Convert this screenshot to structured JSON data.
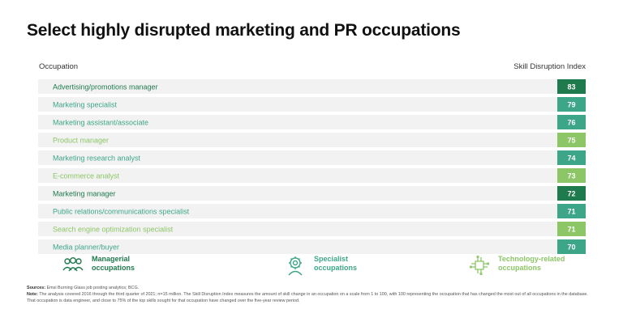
{
  "header": {
    "title": "Select highly disrupted marketing and PR occupations",
    "col_left": "Occupation",
    "col_right": "Skill Disruption Index"
  },
  "colors": {
    "Managerial": "#1f7a4d",
    "Specialist": "#3ea688",
    "Technology-related": "#8cc667",
    "row_bg": "#f2f2f2"
  },
  "chart_data": {
    "type": "bar",
    "categories": [
      "Advertising/promotions manager",
      "Marketing specialist",
      "Marketing assistant/associate",
      "Product manager",
      "Marketing research analyst",
      "E-commerce analyst",
      "Marketing manager",
      "Public relations/communications specialist",
      "Search engine optimization specialist",
      "Media planner/buyer"
    ],
    "values": [
      83,
      79,
      76,
      75,
      74,
      73,
      72,
      71,
      71,
      70
    ],
    "groups": [
      "Managerial",
      "Specialist",
      "Specialist",
      "Technology-related",
      "Specialist",
      "Technology-related",
      "Managerial",
      "Specialist",
      "Technology-related",
      "Specialist"
    ],
    "title": "Select highly disrupted marketing and PR occupations",
    "xlabel": "Occupation",
    "ylabel": "Skill Disruption Index"
  },
  "legend": {
    "managerial": {
      "line1": "Managerial",
      "line2": "occupations",
      "icon": "people-group-icon"
    },
    "specialist": {
      "line1": "Specialist",
      "line2": "occupations",
      "icon": "specialist-gear-person-icon"
    },
    "technology": {
      "line1": "Technology-related",
      "line2": "occupations",
      "icon": "circuit-chip-icon"
    }
  },
  "footer": {
    "sources_label": "Sources:",
    "sources_text": "Emsi Burning Glass job posting analytics; BCG.",
    "note_label": "Note:",
    "note_text": "The analysis covered 2016 through the third quarter of 2021; n=15 million. The Skill Disruption Index measures the amount of skill change in an occupation on a scale from 1 to 100, with 100 representing the occupation that has changed the most out of all occupations in the database. That occupation is data engineer, and close to 75% of the top skills sought for that occupation have changed over the five-year review period."
  }
}
